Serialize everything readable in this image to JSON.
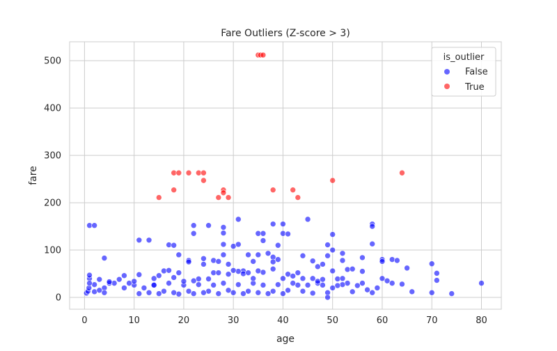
{
  "chart_data": {
    "type": "scatter",
    "title": "Fare Outliers (Z-score > 3)",
    "xlabel": "age",
    "ylabel": "fare",
    "xlim": [
      -3,
      84
    ],
    "ylim": [
      -25,
      540
    ],
    "xticks": [
      0,
      10,
      20,
      30,
      40,
      50,
      60,
      70,
      80
    ],
    "yticks": [
      0,
      100,
      200,
      300,
      400,
      500
    ],
    "grid": true,
    "legend": {
      "title": "is_outlier",
      "placement": "top-right"
    },
    "series": [
      {
        "name": "False",
        "color": "#0000ff",
        "points": [
          [
            1,
            152
          ],
          [
            2,
            152
          ],
          [
            4,
            83
          ],
          [
            11,
            121
          ],
          [
            13,
            121
          ],
          [
            17,
            111
          ],
          [
            18,
            110
          ],
          [
            19,
            90
          ],
          [
            21,
            78
          ],
          [
            21,
            75
          ],
          [
            22,
            152
          ],
          [
            22,
            135
          ],
          [
            24,
            82
          ],
          [
            24,
            70
          ],
          [
            25,
            152
          ],
          [
            26,
            78
          ],
          [
            27,
            76
          ],
          [
            28,
            148
          ],
          [
            28,
            136
          ],
          [
            28,
            112
          ],
          [
            28,
            90
          ],
          [
            29,
            70
          ],
          [
            30,
            108
          ],
          [
            31,
            112
          ],
          [
            31,
            165
          ],
          [
            32,
            56
          ],
          [
            33,
            90
          ],
          [
            34,
            76
          ],
          [
            35,
            135
          ],
          [
            35,
            90
          ],
          [
            36,
            135
          ],
          [
            36,
            120
          ],
          [
            37,
            93
          ],
          [
            38,
            155
          ],
          [
            38,
            85
          ],
          [
            38,
            75
          ],
          [
            39,
            110
          ],
          [
            39,
            80
          ],
          [
            40,
            155
          ],
          [
            40,
            135
          ],
          [
            41,
            134
          ],
          [
            44,
            88
          ],
          [
            45,
            165
          ],
          [
            46,
            77
          ],
          [
            47,
            65
          ],
          [
            48,
            70
          ],
          [
            49,
            111
          ],
          [
            49,
            88
          ],
          [
            50,
            133
          ],
          [
            50,
            100
          ],
          [
            52,
            93
          ],
          [
            52,
            78
          ],
          [
            53,
            59
          ],
          [
            54,
            60
          ],
          [
            56,
            84
          ],
          [
            58,
            155
          ],
          [
            58,
            150
          ],
          [
            58,
            113
          ],
          [
            60,
            80
          ],
          [
            60,
            76
          ],
          [
            62,
            80
          ],
          [
            63,
            78
          ],
          [
            65,
            62
          ],
          [
            70,
            71
          ],
          [
            71,
            51
          ],
          [
            71,
            36
          ],
          [
            80,
            30
          ],
          [
            74,
            8
          ],
          [
            70,
            10
          ],
          [
            66,
            12
          ],
          [
            64,
            28
          ],
          [
            62,
            30
          ],
          [
            61,
            35
          ],
          [
            60,
            40
          ],
          [
            59,
            20
          ],
          [
            58,
            10
          ],
          [
            57,
            16
          ],
          [
            56,
            30
          ],
          [
            55,
            25
          ],
          [
            54,
            12
          ],
          [
            53,
            30
          ],
          [
            52,
            27
          ],
          [
            51,
            25
          ],
          [
            50,
            20
          ],
          [
            49,
            10
          ],
          [
            49,
            0
          ],
          [
            48,
            26
          ],
          [
            47,
            30
          ],
          [
            46,
            9
          ],
          [
            45,
            26
          ],
          [
            44,
            13
          ],
          [
            43,
            26
          ],
          [
            42,
            30
          ],
          [
            41,
            15
          ],
          [
            40,
            8
          ],
          [
            39,
            27
          ],
          [
            38,
            13
          ],
          [
            37,
            8
          ],
          [
            36,
            26
          ],
          [
            35,
            10
          ],
          [
            34,
            30
          ],
          [
            33,
            13
          ],
          [
            32,
            8
          ],
          [
            31,
            27
          ],
          [
            30,
            10
          ],
          [
            29,
            15
          ],
          [
            28,
            30
          ],
          [
            27,
            8
          ],
          [
            26,
            26
          ],
          [
            25,
            13
          ],
          [
            24,
            10
          ],
          [
            23,
            27
          ],
          [
            22,
            8
          ],
          [
            21,
            13
          ],
          [
            20,
            26
          ],
          [
            19,
            7
          ],
          [
            18,
            10
          ],
          [
            17,
            30
          ],
          [
            16,
            13
          ],
          [
            15,
            8
          ],
          [
            14,
            26
          ],
          [
            13,
            10
          ],
          [
            12,
            20
          ],
          [
            11,
            8
          ],
          [
            10,
            26
          ],
          [
            9,
            30
          ],
          [
            8,
            20
          ],
          [
            7,
            38
          ],
          [
            6,
            30
          ],
          [
            5,
            30
          ],
          [
            4,
            20
          ],
          [
            3,
            38
          ],
          [
            2,
            27
          ],
          [
            1,
            40
          ],
          [
            0.4,
            9
          ],
          [
            0.7,
            13
          ],
          [
            0.9,
            20
          ],
          [
            1,
            30
          ],
          [
            1,
            47
          ],
          [
            2,
            12
          ],
          [
            3,
            15
          ],
          [
            4,
            10
          ],
          [
            5,
            33
          ],
          [
            8,
            46
          ],
          [
            10,
            34
          ],
          [
            11,
            48
          ],
          [
            14,
            40
          ],
          [
            15,
            46
          ],
          [
            16,
            56
          ],
          [
            17,
            57
          ],
          [
            19,
            52
          ],
          [
            20,
            34
          ],
          [
            23,
            39
          ],
          [
            25,
            39
          ],
          [
            26,
            52
          ],
          [
            27,
            52
          ],
          [
            29,
            49
          ],
          [
            31,
            55
          ],
          [
            32,
            50
          ],
          [
            33,
            52
          ],
          [
            34,
            40
          ],
          [
            36,
            53
          ],
          [
            40,
            40
          ],
          [
            41,
            49
          ],
          [
            43,
            52
          ],
          [
            44,
            40
          ],
          [
            46,
            40
          ],
          [
            47,
            34
          ],
          [
            50,
            56
          ],
          [
            51,
            39
          ],
          [
            56,
            55
          ],
          [
            52,
            40
          ],
          [
            48,
            38
          ],
          [
            42,
            45
          ],
          [
            38,
            60
          ],
          [
            35,
            56
          ],
          [
            30,
            57
          ],
          [
            22,
            35
          ],
          [
            18,
            42
          ],
          [
            14,
            26
          ]
        ]
      },
      {
        "name": "True",
        "color": "#ff0000",
        "points": [
          [
            35,
            512
          ],
          [
            35.5,
            512
          ],
          [
            36,
            512
          ],
          [
            18,
            263
          ],
          [
            19,
            263
          ],
          [
            21,
            263
          ],
          [
            23,
            263
          ],
          [
            24,
            263
          ],
          [
            64,
            263
          ],
          [
            24,
            247
          ],
          [
            50,
            247
          ],
          [
            18,
            227
          ],
          [
            28,
            227
          ],
          [
            28,
            221
          ],
          [
            38,
            227
          ],
          [
            42,
            227
          ],
          [
            15,
            211
          ],
          [
            27,
            211
          ],
          [
            29,
            211
          ],
          [
            43,
            211
          ]
        ]
      }
    ]
  }
}
